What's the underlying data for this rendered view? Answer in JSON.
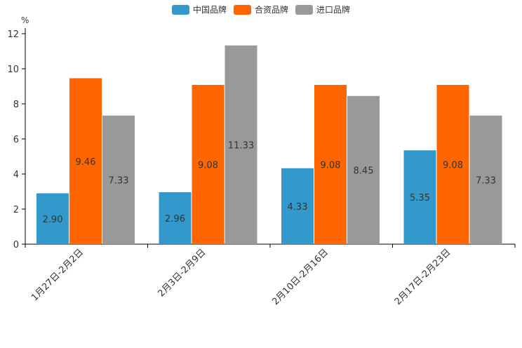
{
  "chart_data": {
    "type": "bar",
    "unit": "%",
    "categories": [
      "1月27日-2月2日",
      "2月3日-2月9日",
      "2月10日-2月16日",
      "2月17日-2月23日"
    ],
    "series": [
      {
        "name": "中国品牌",
        "color": "#3399cc",
        "values": [
          2.9,
          2.96,
          4.33,
          5.35
        ],
        "labels": [
          "2.90",
          "2.96",
          "4.33",
          "5.35"
        ]
      },
      {
        "name": "合资品牌",
        "color": "#ff6600",
        "values": [
          9.46,
          9.08,
          9.08,
          9.08
        ],
        "labels": [
          "9.46",
          "9.08",
          "9.08",
          "9.08"
        ]
      },
      {
        "name": "进口品牌",
        "color": "#999999",
        "values": [
          7.33,
          11.33,
          8.45,
          7.33
        ],
        "labels": [
          "7.33",
          "11.33",
          "8.45",
          "7.33"
        ]
      }
    ],
    "yticks": [
      "0",
      "2",
      "4",
      "6",
      "8",
      "10",
      "12"
    ],
    "ylim": [
      0,
      12
    ],
    "legend_position": "top-center",
    "grid": false
  }
}
